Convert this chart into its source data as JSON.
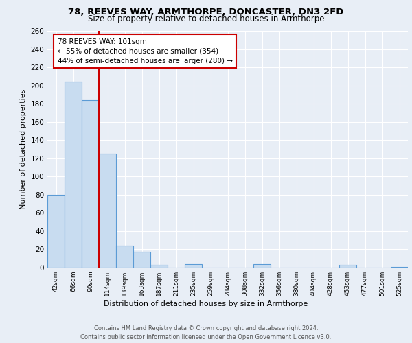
{
  "title1": "78, REEVES WAY, ARMTHORPE, DONCASTER, DN3 2FD",
  "title2": "Size of property relative to detached houses in Armthorpe",
  "xlabel": "Distribution of detached houses by size in Armthorpe",
  "ylabel": "Number of detached properties",
  "bin_labels": [
    "42sqm",
    "66sqm",
    "90sqm",
    "114sqm",
    "139sqm",
    "163sqm",
    "187sqm",
    "211sqm",
    "235sqm",
    "259sqm",
    "284sqm",
    "308sqm",
    "332sqm",
    "356sqm",
    "380sqm",
    "404sqm",
    "428sqm",
    "453sqm",
    "477sqm",
    "501sqm",
    "525sqm"
  ],
  "bar_values": [
    80,
    204,
    184,
    125,
    24,
    17,
    3,
    0,
    4,
    0,
    0,
    0,
    4,
    0,
    0,
    0,
    0,
    3,
    0,
    0,
    1
  ],
  "bar_color": "#c8dcf0",
  "bar_edge_color": "#5b9bd5",
  "vline_color": "#cc0000",
  "annotation_text": "78 REEVES WAY: 101sqm\n← 55% of detached houses are smaller (354)\n44% of semi-detached houses are larger (280) →",
  "annotation_box_edge": "#cc0000",
  "ylim": [
    0,
    260
  ],
  "yticks": [
    0,
    20,
    40,
    60,
    80,
    100,
    120,
    140,
    160,
    180,
    200,
    220,
    240,
    260
  ],
  "footer": "Contains HM Land Registry data © Crown copyright and database right 2024.\nContains public sector information licensed under the Open Government Licence v3.0.",
  "bg_color": "#e8eef6",
  "plot_bg_color": "#e8eef6"
}
